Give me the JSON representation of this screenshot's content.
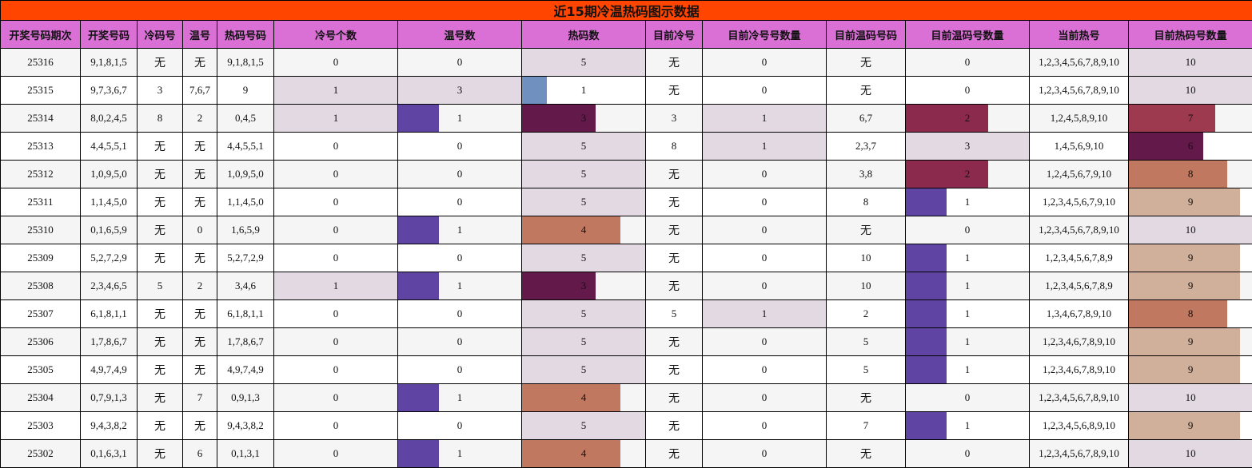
{
  "title": "近15期冷温热码图示数据",
  "headers": [
    "开奖号码期次",
    "开奖号码",
    "冷码号",
    "温号",
    "热码号码",
    "冷号个数",
    "温号数",
    "热码数",
    "目前冷号",
    "目前冷号号数量",
    "目前温码号码",
    "目前温码号数量",
    "当前热号",
    "目前热码号数量"
  ],
  "bar_columns": {
    "5": 1,
    "6": 3,
    "7": 5,
    "9": 1,
    "11": 3,
    "13": 10
  },
  "bar_colors": {
    "0.2": "#7090c0",
    "0.33": "#5f44a4",
    "0.6": "#63194a",
    "0.67": "#8b2a4d",
    "0.7": "#9e3a50",
    "0.8": "#c07860",
    "0.9": "#d0b09a",
    "1": "#e2d9e2"
  },
  "rows": [
    [
      "25316",
      "9,1,8,1,5",
      "无",
      "无",
      "9,1,8,1,5",
      "0",
      "0",
      "5",
      "无",
      "0",
      "无",
      "0",
      "1,2,3,4,5,6,7,8,9,10",
      "10"
    ],
    [
      "25315",
      "9,7,3,6,7",
      "3",
      "7,6,7",
      "9",
      "1",
      "3",
      "1",
      "无",
      "0",
      "无",
      "0",
      "1,2,3,4,5,6,7,8,9,10",
      "10"
    ],
    [
      "25314",
      "8,0,2,4,5",
      "8",
      "2",
      "0,4,5",
      "1",
      "1",
      "3",
      "3",
      "1",
      "6,7",
      "2",
      "1,2,4,5,8,9,10",
      "7"
    ],
    [
      "25313",
      "4,4,5,5,1",
      "无",
      "无",
      "4,4,5,5,1",
      "0",
      "0",
      "5",
      "8",
      "1",
      "2,3,7",
      "3",
      "1,4,5,6,9,10",
      "6"
    ],
    [
      "25312",
      "1,0,9,5,0",
      "无",
      "无",
      "1,0,9,5,0",
      "0",
      "0",
      "5",
      "无",
      "0",
      "3,8",
      "2",
      "1,2,4,5,6,7,9,10",
      "8"
    ],
    [
      "25311",
      "1,1,4,5,0",
      "无",
      "无",
      "1,1,4,5,0",
      "0",
      "0",
      "5",
      "无",
      "0",
      "8",
      "1",
      "1,2,3,4,5,6,7,9,10",
      "9"
    ],
    [
      "25310",
      "0,1,6,5,9",
      "无",
      "0",
      "1,6,5,9",
      "0",
      "1",
      "4",
      "无",
      "0",
      "无",
      "0",
      "1,2,3,4,5,6,7,8,9,10",
      "10"
    ],
    [
      "25309",
      "5,2,7,2,9",
      "无",
      "无",
      "5,2,7,2,9",
      "0",
      "0",
      "5",
      "无",
      "0",
      "10",
      "1",
      "1,2,3,4,5,6,7,8,9",
      "9"
    ],
    [
      "25308",
      "2,3,4,6,5",
      "5",
      "2",
      "3,4,6",
      "1",
      "1",
      "3",
      "无",
      "0",
      "10",
      "1",
      "1,2,3,4,5,6,7,8,9",
      "9"
    ],
    [
      "25307",
      "6,1,8,1,1",
      "无",
      "无",
      "6,1,8,1,1",
      "0",
      "0",
      "5",
      "5",
      "1",
      "2",
      "1",
      "1,3,4,6,7,8,9,10",
      "8"
    ],
    [
      "25306",
      "1,7,8,6,7",
      "无",
      "无",
      "1,7,8,6,7",
      "0",
      "0",
      "5",
      "无",
      "0",
      "5",
      "1",
      "1,2,3,4,6,7,8,9,10",
      "9"
    ],
    [
      "25305",
      "4,9,7,4,9",
      "无",
      "无",
      "4,9,7,4,9",
      "0",
      "0",
      "5",
      "无",
      "0",
      "5",
      "1",
      "1,2,3,4,6,7,8,9,10",
      "9"
    ],
    [
      "25304",
      "0,7,9,1,3",
      "无",
      "7",
      "0,9,1,3",
      "0",
      "1",
      "4",
      "无",
      "0",
      "无",
      "0",
      "1,2,3,4,5,6,7,8,9,10",
      "10"
    ],
    [
      "25303",
      "9,4,3,8,2",
      "无",
      "无",
      "9,4,3,8,2",
      "0",
      "0",
      "5",
      "无",
      "0",
      "7",
      "1",
      "1,2,3,4,5,6,8,9,10",
      "9"
    ],
    [
      "25302",
      "0,1,6,3,1",
      "无",
      "6",
      "0,1,3,1",
      "0",
      "1",
      "4",
      "无",
      "0",
      "无",
      "0",
      "1,2,3,4,5,6,7,8,9,10",
      "10"
    ]
  ]
}
